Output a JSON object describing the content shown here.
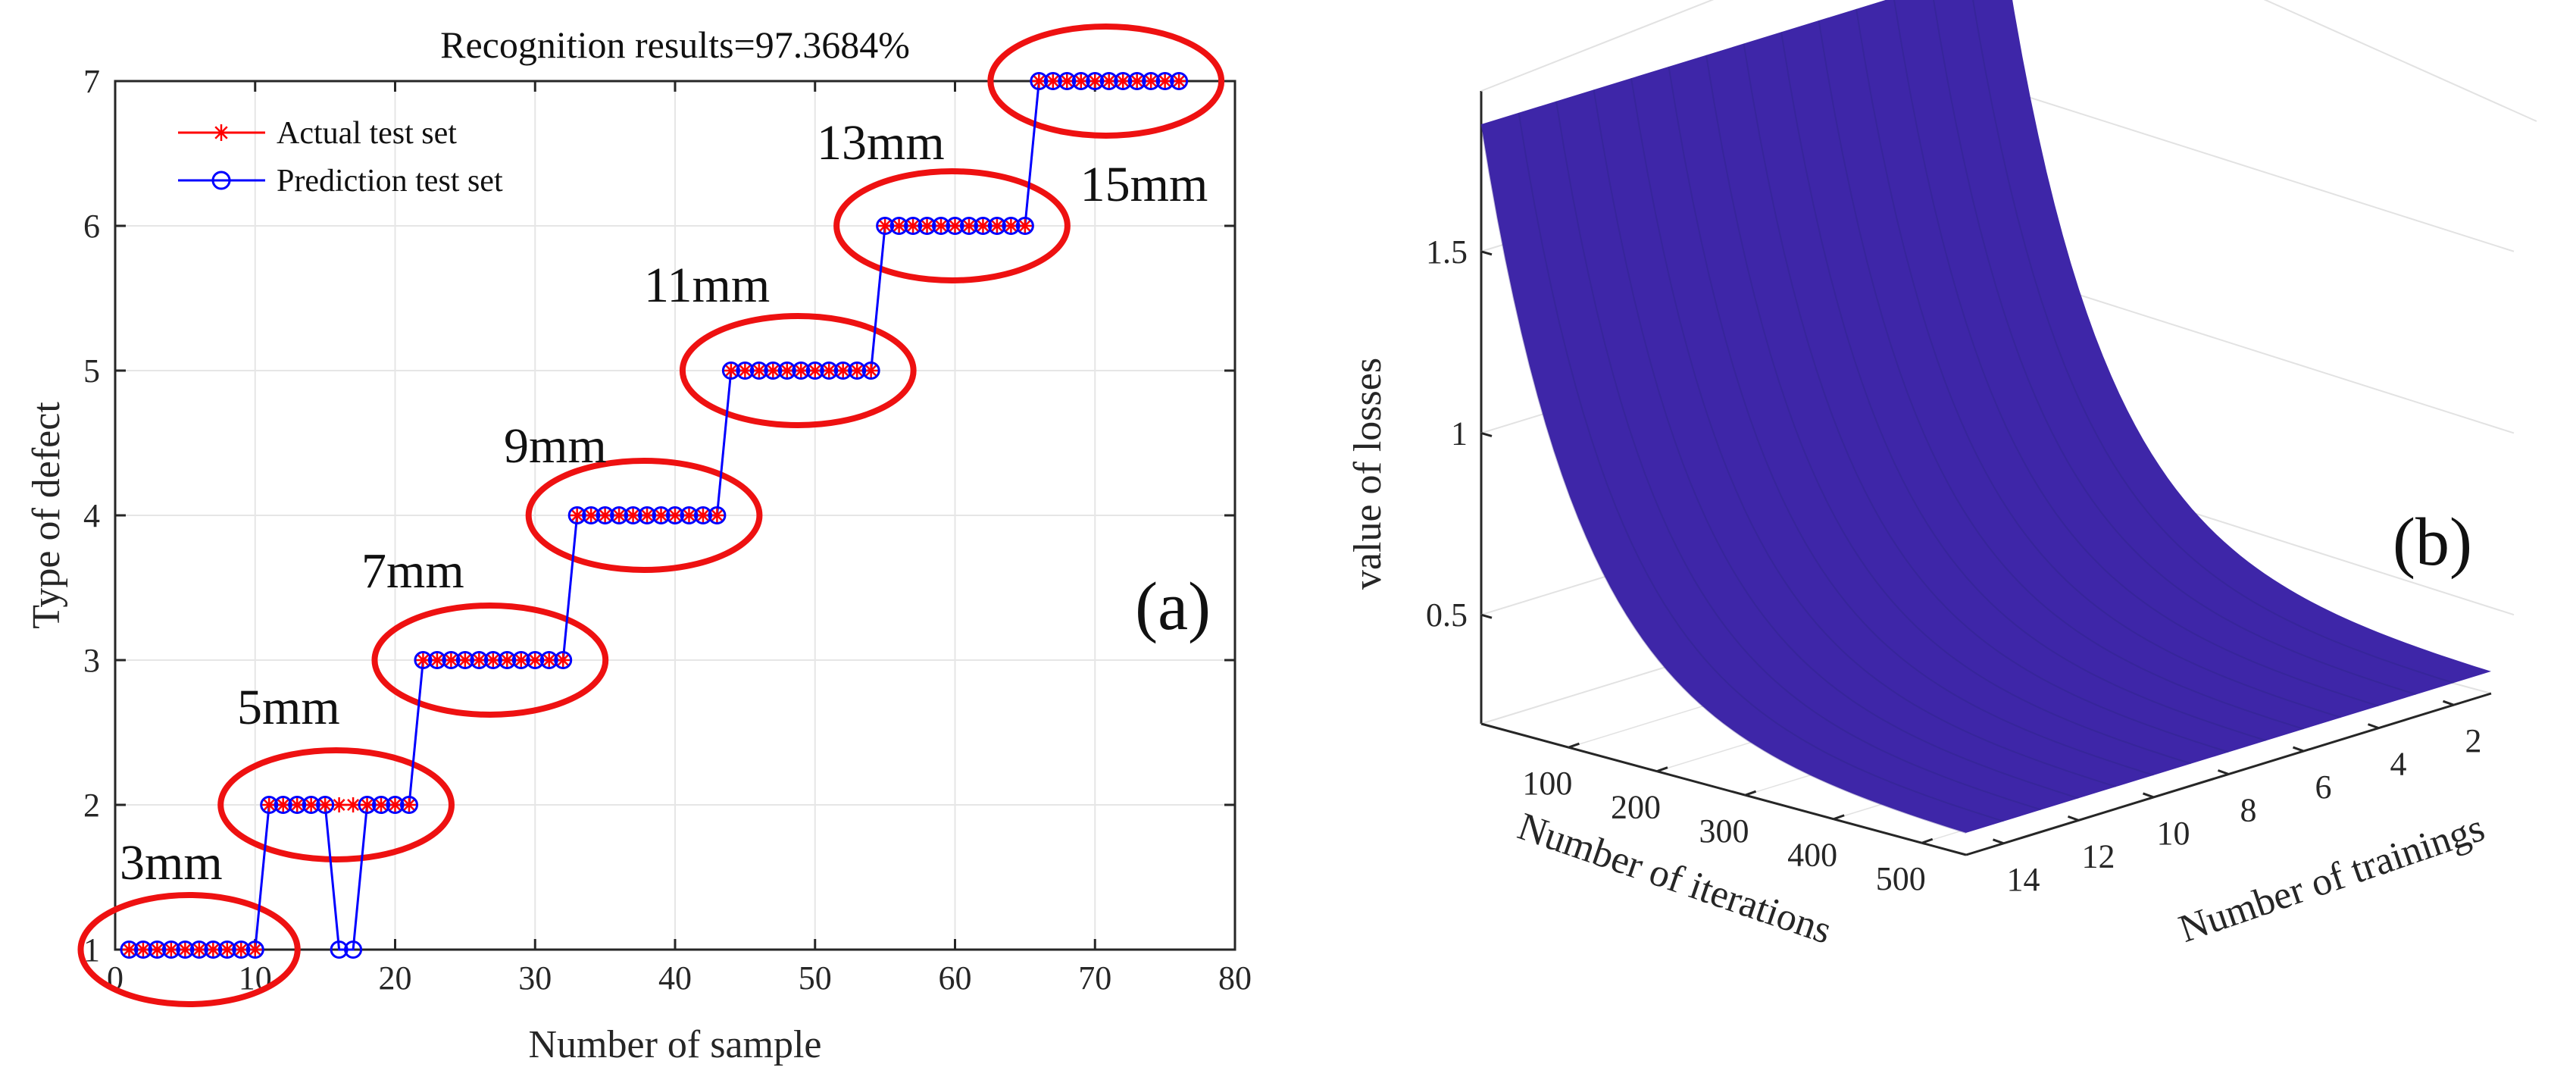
{
  "chart_data": [
    {
      "type": "line",
      "panel_label": "(a)",
      "title": "Recognition results=97.3684%",
      "xlabel": "Number of sample",
      "ylabel": "Type of defect",
      "xlim": [
        0,
        80
      ],
      "ylim": [
        1,
        7
      ],
      "xticks": [
        "0",
        "10",
        "20",
        "30",
        "40",
        "50",
        "60",
        "70",
        "80"
      ],
      "yticks": [
        "1",
        "2",
        "3",
        "4",
        "5",
        "6",
        "7"
      ],
      "grid": true,
      "legend_position": "top-left",
      "series": [
        {
          "name": "Actual test set",
          "color": "#ff0000",
          "marker": "asterisk",
          "x": [
            1,
            2,
            3,
            4,
            5,
            6,
            7,
            8,
            9,
            10,
            11,
            12,
            13,
            14,
            15,
            16,
            17,
            18,
            19,
            20,
            21,
            22,
            23,
            24,
            25,
            26,
            27,
            28,
            29,
            30,
            31,
            32,
            33,
            34,
            35,
            36,
            37,
            38,
            39,
            40,
            41,
            42,
            43,
            44,
            45,
            46,
            47,
            48,
            49,
            50,
            51,
            52,
            53,
            54,
            55,
            56,
            57,
            58,
            59,
            60,
            61,
            62,
            63,
            64,
            65,
            66,
            67,
            68,
            69,
            70,
            71,
            72,
            73,
            74,
            75,
            76
          ],
          "y": [
            1,
            1,
            1,
            1,
            1,
            1,
            1,
            1,
            1,
            1,
            2,
            2,
            2,
            2,
            2,
            2,
            2,
            2,
            2,
            2,
            2,
            3,
            3,
            3,
            3,
            3,
            3,
            3,
            3,
            3,
            3,
            3,
            4,
            4,
            4,
            4,
            4,
            4,
            4,
            4,
            4,
            4,
            4,
            5,
            5,
            5,
            5,
            5,
            5,
            5,
            5,
            5,
            5,
            5,
            6,
            6,
            6,
            6,
            6,
            6,
            6,
            6,
            6,
            6,
            6,
            7,
            7,
            7,
            7,
            7,
            7,
            7,
            7,
            7,
            7,
            7
          ]
        },
        {
          "name": "Prediction test set",
          "color": "#0000ff",
          "marker": "circle",
          "x": [
            1,
            2,
            3,
            4,
            5,
            6,
            7,
            8,
            9,
            10,
            11,
            12,
            13,
            14,
            15,
            16,
            17,
            18,
            19,
            20,
            21,
            22,
            23,
            24,
            25,
            26,
            27,
            28,
            29,
            30,
            31,
            32,
            33,
            34,
            35,
            36,
            37,
            38,
            39,
            40,
            41,
            42,
            43,
            44,
            45,
            46,
            47,
            48,
            49,
            50,
            51,
            52,
            53,
            54,
            55,
            56,
            57,
            58,
            59,
            60,
            61,
            62,
            63,
            64,
            65,
            66,
            67,
            68,
            69,
            70,
            71,
            72,
            73,
            74,
            75,
            76
          ],
          "y": [
            1,
            1,
            1,
            1,
            1,
            1,
            1,
            1,
            1,
            1,
            2,
            2,
            2,
            2,
            2,
            1,
            1,
            2,
            2,
            2,
            2,
            3,
            3,
            3,
            3,
            3,
            3,
            3,
            3,
            3,
            3,
            3,
            4,
            4,
            4,
            4,
            4,
            4,
            4,
            4,
            4,
            4,
            4,
            5,
            5,
            5,
            5,
            5,
            5,
            5,
            5,
            5,
            5,
            5,
            6,
            6,
            6,
            6,
            6,
            6,
            6,
            6,
            6,
            6,
            6,
            7,
            7,
            7,
            7,
            7,
            7,
            7,
            7,
            7,
            7,
            7
          ]
        }
      ],
      "annotations": [
        {
          "text": "3mm",
          "x": 5.5,
          "y": 1
        },
        {
          "text": "5mm",
          "x": 15.5,
          "y": 2
        },
        {
          "text": "7mm",
          "x": 27,
          "y": 3
        },
        {
          "text": "9mm",
          "x": 38,
          "y": 4
        },
        {
          "text": "11mm",
          "x": 49,
          "y": 5
        },
        {
          "text": "13mm",
          "x": 60,
          "y": 6
        },
        {
          "text": "15mm",
          "x": 71,
          "y": 7
        }
      ],
      "highlight_color": "#ee1111"
    },
    {
      "type": "surface",
      "panel_label": "(b)",
      "xlabel": "Number of iterations",
      "ylabel": "Number of trainings",
      "zlabel": "value of losses",
      "x_range": [
        1,
        550
      ],
      "y_range": [
        1,
        15
      ],
      "z_range": [
        0.2,
        1.9
      ],
      "xticks": [
        "100",
        "200",
        "300",
        "400",
        "500"
      ],
      "yticks": [
        "2",
        "4",
        "6",
        "8",
        "10",
        "12",
        "14"
      ],
      "zticks": [
        "0.5",
        "1",
        "1.5"
      ],
      "surface_z_start": 1.85,
      "surface_z_end": 0.25,
      "colormap": [
        "#3e26a8",
        "#4a40d6",
        "#2f7ef5",
        "#1aa9df",
        "#1ec6b5",
        "#52cc85",
        "#a6c239",
        "#f0b93a",
        "#f9e11e"
      ],
      "grid": true
    }
  ]
}
